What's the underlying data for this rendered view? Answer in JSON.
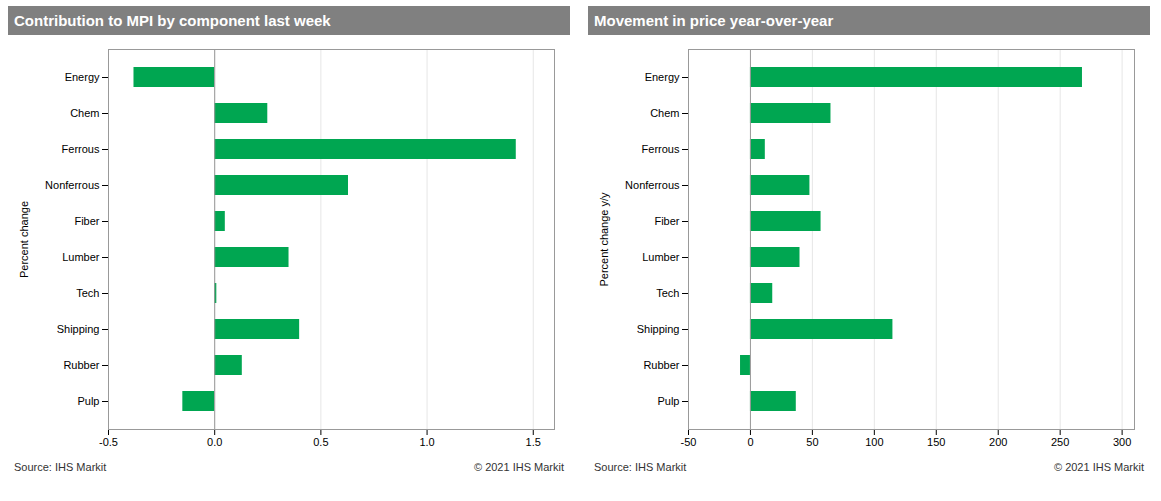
{
  "chart_data": [
    {
      "type": "bar",
      "orientation": "horizontal",
      "title": "Contribution to MPI by component last week",
      "ylabel": "Percent change",
      "categories": [
        "Pulp",
        "Rubber",
        "Shipping",
        "Tech",
        "Lumber",
        "Fiber",
        "Nonferrous",
        "Ferrous",
        "Chem",
        "Energy"
      ],
      "values": [
        -0.15,
        0.13,
        0.4,
        0.01,
        0.35,
        0.05,
        0.63,
        1.42,
        0.25,
        -0.38
      ],
      "color": "#00a651",
      "xlim": [
        -0.5,
        1.6
      ],
      "xticks": [
        -0.5,
        {
          "value": 0,
          "label": "0.0"
        },
        0.5,
        {
          "value": 1,
          "label": "1.0"
        },
        1.5
      ],
      "grid": true,
      "annotations": [
        "Source:  IHS Markit",
        "© 2021  IHS Markit"
      ]
    },
    {
      "type": "bar",
      "orientation": "horizontal",
      "title": "Movement in price year-over-year",
      "ylabel": "Percent change y/y",
      "categories": [
        "Pulp",
        "Rubber",
        "Shipping",
        "Tech",
        "Lumber",
        "Fiber",
        "Nonferrous",
        "Ferrous",
        "Chem",
        "Energy"
      ],
      "values": [
        37,
        -8,
        115,
        18,
        40,
        57,
        48,
        12,
        65,
        268
      ],
      "color": "#00a651",
      "xlim": [
        -50,
        310
      ],
      "xticks": [
        -50,
        0,
        50,
        100,
        150,
        200,
        250,
        300
      ],
      "grid": true,
      "annotations": [
        "Source:  IHS Markit",
        "© 2021  IHS Markit"
      ]
    }
  ]
}
